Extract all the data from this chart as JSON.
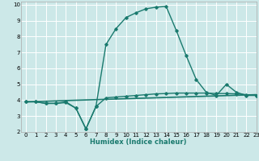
{
  "xlabel": "Humidex (Indice chaleur)",
  "xlim": [
    -0.5,
    23
  ],
  "ylim": [
    2,
    10.2
  ],
  "yticks": [
    2,
    3,
    4,
    5,
    6,
    7,
    8,
    9,
    10
  ],
  "xticks": [
    0,
    1,
    2,
    3,
    4,
    5,
    6,
    7,
    8,
    9,
    10,
    11,
    12,
    13,
    14,
    15,
    16,
    17,
    18,
    19,
    20,
    21,
    22,
    23
  ],
  "bg_color": "#cce8e8",
  "grid_color": "#ffffff",
  "line_color": "#1a7a6e",
  "line1_x": [
    0,
    1,
    2,
    3,
    4,
    5,
    6,
    7,
    8,
    9,
    10,
    11,
    12,
    13,
    14,
    15,
    16,
    17,
    18,
    19,
    20,
    21,
    22,
    23
  ],
  "line1_y": [
    3.9,
    3.9,
    3.8,
    3.8,
    3.9,
    3.5,
    2.2,
    3.6,
    7.5,
    8.5,
    9.2,
    9.5,
    9.75,
    9.85,
    9.9,
    8.4,
    6.8,
    5.3,
    4.5,
    4.3,
    5.0,
    4.5,
    4.3,
    4.3
  ],
  "line2_x": [
    0,
    1,
    2,
    3,
    4,
    5,
    6,
    7,
    8,
    9,
    10,
    11,
    12,
    13,
    14,
    15,
    16,
    17,
    18,
    19,
    20,
    21,
    22,
    23
  ],
  "line2_y": [
    3.9,
    3.9,
    3.8,
    3.8,
    3.85,
    3.5,
    2.2,
    3.6,
    4.15,
    4.2,
    4.25,
    4.3,
    4.35,
    4.4,
    4.42,
    4.45,
    4.45,
    4.45,
    4.45,
    4.42,
    4.42,
    4.4,
    4.35,
    4.3
  ],
  "line3_x": [
    0,
    23
  ],
  "line3_y": [
    3.9,
    4.35
  ]
}
